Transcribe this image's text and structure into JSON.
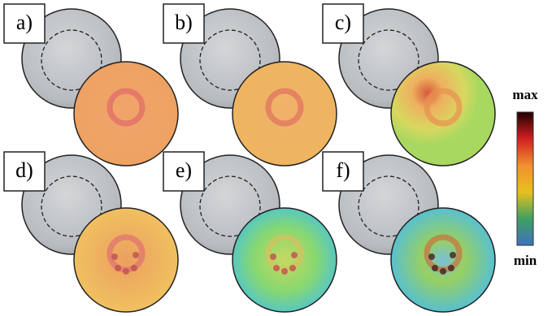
{
  "panels": [
    {
      "label": "a)"
    },
    {
      "label": "b)"
    },
    {
      "label": "c)"
    },
    {
      "label": "d)"
    },
    {
      "label": "e)"
    },
    {
      "label": "f)"
    }
  ],
  "colorbar": {
    "max_label": "max",
    "min_label": "min"
  }
}
